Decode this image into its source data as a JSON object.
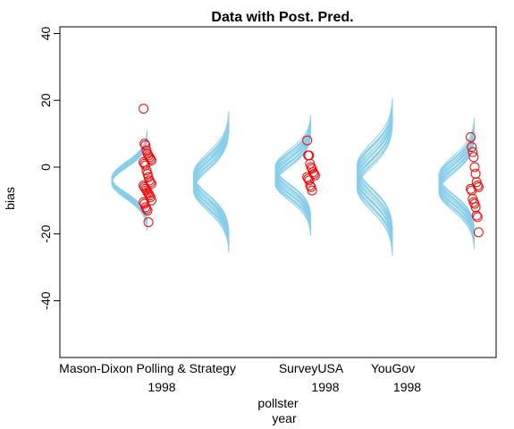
{
  "chart_data": {
    "type": "scatter",
    "title": "Data with Post. Pred.",
    "xlabel": [
      "pollster",
      "year"
    ],
    "ylabel": "bias",
    "ylim": [
      -57,
      42
    ],
    "y_ticks": [
      40,
      20,
      0,
      -20,
      -40
    ],
    "grid": false,
    "legend": "none",
    "colors": {
      "points": "#ff0000",
      "predictive": "#87ceeb",
      "axes": "#000000"
    },
    "groups": [
      {
        "x": 1,
        "label1": "Mason-Dixon Polling & Strategy",
        "label2": "1998",
        "pred_center": -4,
        "pred_center_spread": 0.8,
        "pred_sd": 4.5,
        "points": [
          17.5,
          7,
          6.5,
          5,
          4,
          3.5,
          3,
          2.5,
          2,
          1.5,
          1,
          0.5,
          -1,
          -2,
          -3,
          -4,
          -4.5,
          -5,
          -5.5,
          -6,
          -6.5,
          -7,
          -7.5,
          -8,
          -8.5,
          -9,
          -10,
          -10.5,
          -11,
          -12,
          -12.5,
          -13,
          -16.5
        ]
      },
      {
        "x": 2,
        "label1": "",
        "label2": "",
        "pred_center": -4.5,
        "pred_center_spread": 2.5,
        "pred_sd": 6,
        "points": []
      },
      {
        "x": 3,
        "label1": "SurveyUSA",
        "label2": "1998",
        "pred_center": -2.5,
        "pred_center_spread": 2.5,
        "pred_sd": 5,
        "points": [
          8,
          3.5,
          3.5,
          1,
          0,
          -0.5,
          -1.5,
          -2,
          -2.5,
          -3,
          -3.5,
          -4,
          -5.5,
          -6,
          -7
        ]
      },
      {
        "x": 4,
        "label1": "YouGov",
        "label2": "1998",
        "pred_center": -3,
        "pred_center_spread": 3.5,
        "pred_sd": 6.5,
        "points": []
      },
      {
        "x": 5,
        "label1": "",
        "label2": "",
        "pred_center": -5,
        "pred_center_spread": 2.5,
        "pred_sd": 5.5,
        "points": [
          9,
          6,
          4.5,
          3,
          0,
          -2,
          -4.5,
          -5.5,
          -6,
          -6.5,
          -7,
          -9.5,
          -10.5,
          -11,
          -12,
          -14.5,
          -15,
          -19.5
        ]
      }
    ]
  }
}
